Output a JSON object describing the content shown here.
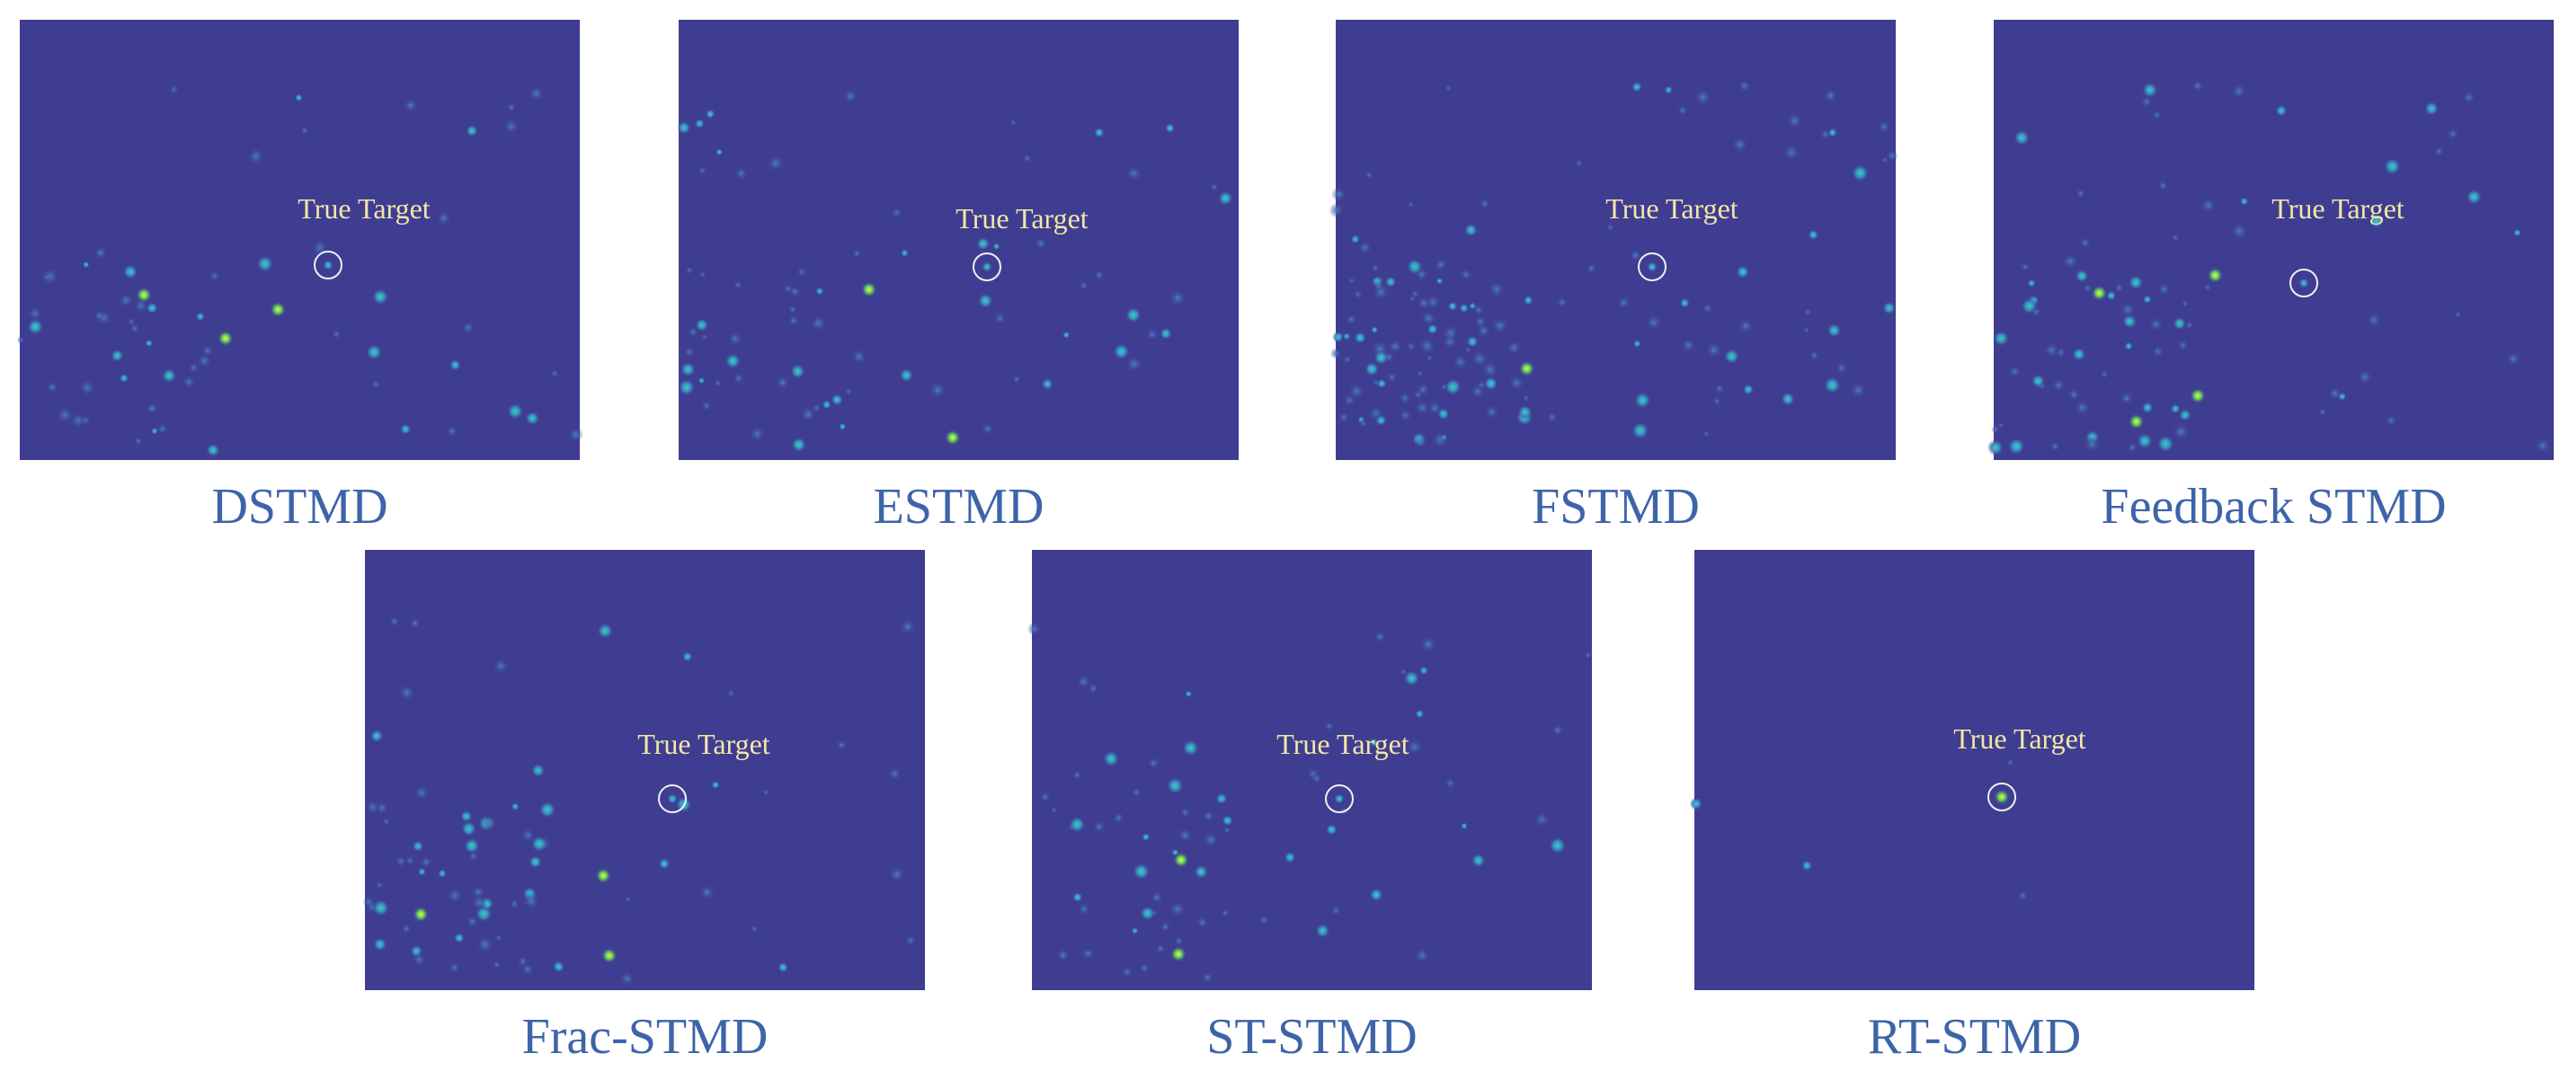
{
  "panels": [
    {
      "label": "DSTMD",
      "annotation": "True Target"
    },
    {
      "label": "ESTMD",
      "annotation": "True Target"
    },
    {
      "label": "FSTMD",
      "annotation": "True Target"
    },
    {
      "label": "Feedback STMD",
      "annotation": "True Target"
    },
    {
      "label": "Frac-STMD",
      "annotation": "True Target"
    },
    {
      "label": "ST-STMD",
      "annotation": "True Target"
    },
    {
      "label": "RT-STMD",
      "annotation": "True Target"
    }
  ]
}
